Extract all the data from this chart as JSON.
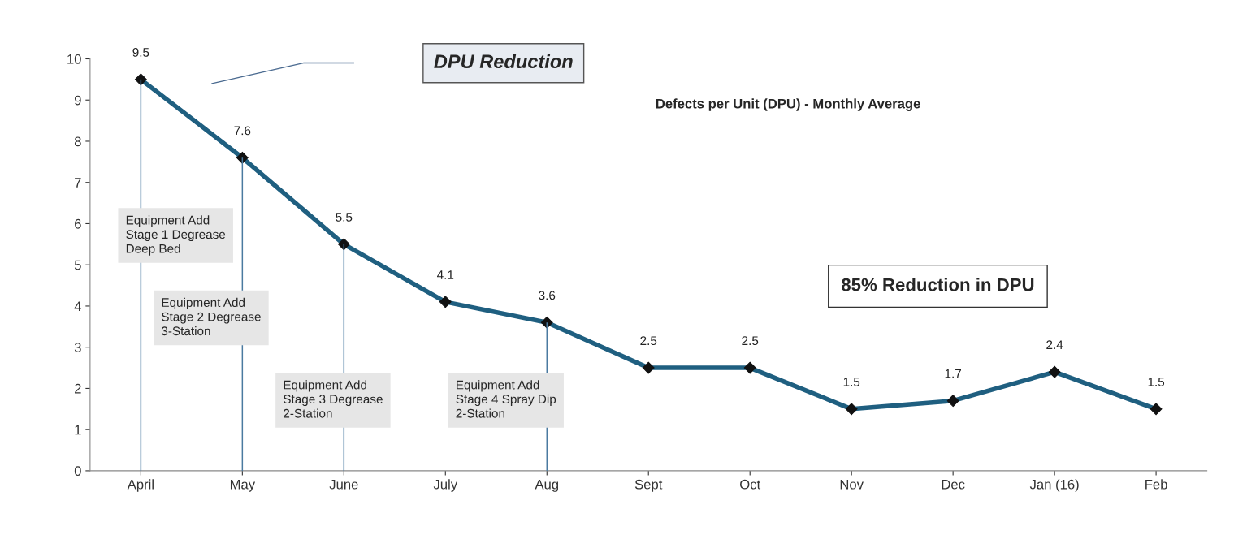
{
  "chart_data": {
    "type": "line",
    "title": "DPU Reduction",
    "subtitle": "Defects per Unit (DPU) - Monthly Average",
    "categories": [
      "April",
      "May",
      "June",
      "July",
      "Aug",
      "Sept",
      "Oct",
      "Nov",
      "Dec",
      "Jan (16)",
      "Feb"
    ],
    "series": [
      {
        "type": "bar",
        "color": "#4a7aa0",
        "values": [
          9.5,
          7.6,
          5.5,
          null,
          3.6,
          null,
          null,
          null,
          null,
          null,
          null
        ]
      },
      {
        "color": "#1f5f80",
        "values": [
          9.5,
          7.6,
          5.5,
          4.1,
          3.6,
          2.5,
          2.5,
          1.5,
          1.7,
          2.4,
          1.5
        ],
        "value_labels": [
          "9.5",
          "7.6",
          "5.5",
          "4.1",
          "3.6",
          "2.5",
          "2.5",
          "1.5",
          "1.7",
          "2.4",
          "1.5"
        ]
      }
    ],
    "ylim": [
      0,
      10
    ],
    "yticks": [
      0,
      1,
      2,
      3,
      4,
      5,
      6,
      7,
      8,
      9,
      10
    ],
    "grid": false,
    "marker": "diamond",
    "line_style": "solid",
    "annotations": [
      "85% Reduction in DPU",
      "Equipment Add\nStage 1 Degrease\nDeep Bed",
      "Equipment Add\nStage 2 Degrease\n3-Station",
      "Equipment Add\nStage 3 Degrease\n2-Station",
      "Equipment Add\nStage 4 Spray Dip\n2-Station"
    ]
  }
}
